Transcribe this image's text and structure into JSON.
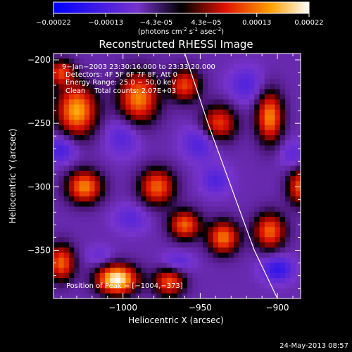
{
  "colorbar": {
    "ticks": [
      "-0.00022",
      "-0.00013",
      "-4.3e-05",
      "4.3e-05",
      "0.00013",
      "0.00022"
    ],
    "units": "(photons cm",
    "units_exp1": "-2",
    "units_mid": " s",
    "units_exp2": "-1",
    "units_mid2": " asec",
    "units_exp3": "-2",
    "units_end": ")"
  },
  "chart_data": {
    "type": "heatmap",
    "title": "Reconstructed RHESSI Image",
    "xlabel": "Heliocentric X (arcsec)",
    "ylabel": "Heliocentric Y (arcsec)",
    "xlim": [
      -1045,
      -885
    ],
    "ylim": [
      -388,
      -195
    ],
    "x_ticks": [
      -1000,
      -950,
      -900
    ],
    "y_ticks": [
      -200,
      -250,
      -300,
      -350
    ],
    "x_tick_labels": [
      "−1000",
      "−950",
      "−900"
    ],
    "y_tick_labels": [
      "−200",
      "−250",
      "−300",
      "−350"
    ],
    "color_range": [
      -0.00022,
      0.00022
    ],
    "annotations": [
      "9−Jan−2003 23:30:16.000 to 23:33:20.000",
      "Detectors: 4F 5F 6F 7F 8F, Att 0",
      "Energy Range: 25.0 − 50.0 keV",
      "Clean    Total counts: 2.07E+03",
      "Position of Peak = [−1004,−373]"
    ],
    "peak": {
      "x": -1004,
      "y": -373,
      "value": 0.00022
    },
    "limb_curve": [
      [
        -960,
        -195
      ],
      [
        -945,
        -250
      ],
      [
        -930,
        -300
      ],
      [
        -915,
        -350
      ],
      [
        -900,
        -388
      ]
    ],
    "blobs": [
      {
        "x": -1004,
        "y": -373,
        "v": 0.00022,
        "sx": 9,
        "sy": 8
      },
      {
        "x": -1030,
        "y": -240,
        "v": 0.00016,
        "sx": 9,
        "sy": 14
      },
      {
        "x": -1025,
        "y": -300,
        "v": 0.00014,
        "sx": 8,
        "sy": 9
      },
      {
        "x": -990,
        "y": -230,
        "v": 0.00014,
        "sx": 9,
        "sy": 14
      },
      {
        "x": -978,
        "y": -300,
        "v": 0.00012,
        "sx": 8,
        "sy": 10
      },
      {
        "x": -960,
        "y": -220,
        "v": 0.0001,
        "sx": 7,
        "sy": 9
      },
      {
        "x": -960,
        "y": -330,
        "v": 0.00012,
        "sx": 7,
        "sy": 8
      },
      {
        "x": -935,
        "y": -340,
        "v": 0.00013,
        "sx": 7,
        "sy": 9
      },
      {
        "x": -938,
        "y": -250,
        "v": 0.0001,
        "sx": 8,
        "sy": 10
      },
      {
        "x": -905,
        "y": -245,
        "v": 0.00014,
        "sx": 6,
        "sy": 14
      },
      {
        "x": -905,
        "y": -335,
        "v": 0.00012,
        "sx": 7,
        "sy": 10
      },
      {
        "x": -1040,
        "y": -360,
        "v": 0.00012,
        "sx": 6,
        "sy": 10
      },
      {
        "x": -1040,
        "y": -210,
        "v": 9e-05,
        "sx": 6,
        "sy": 7
      },
      {
        "x": -885,
        "y": -300,
        "v": 0.00011,
        "sx": 6,
        "sy": 10
      },
      {
        "x": -970,
        "y": -375,
        "v": 0.00011,
        "sx": 7,
        "sy": 8
      },
      {
        "x": -1000,
        "y": -260,
        "v": -0.00012,
        "sx": 8,
        "sy": 11
      },
      {
        "x": -1040,
        "y": -270,
        "v": -0.00014,
        "sx": 7,
        "sy": 8
      },
      {
        "x": -995,
        "y": -325,
        "v": -0.00011,
        "sx": 8,
        "sy": 8
      },
      {
        "x": -950,
        "y": -265,
        "v": -0.00013,
        "sx": 8,
        "sy": 10
      },
      {
        "x": -940,
        "y": -295,
        "v": -0.00012,
        "sx": 7,
        "sy": 8
      },
      {
        "x": -920,
        "y": -220,
        "v": -0.00012,
        "sx": 8,
        "sy": 10
      },
      {
        "x": -900,
        "y": -365,
        "v": -0.00016,
        "sx": 7,
        "sy": 7
      },
      {
        "x": -890,
        "y": -275,
        "v": -0.00011,
        "sx": 6,
        "sy": 8
      },
      {
        "x": -965,
        "y": -360,
        "v": -0.00012,
        "sx": 7,
        "sy": 6
      },
      {
        "x": -1015,
        "y": -355,
        "v": -0.0001,
        "sx": 6,
        "sy": 6
      }
    ]
  },
  "footer": {
    "timestamp": "24-May-2013 08:57"
  }
}
